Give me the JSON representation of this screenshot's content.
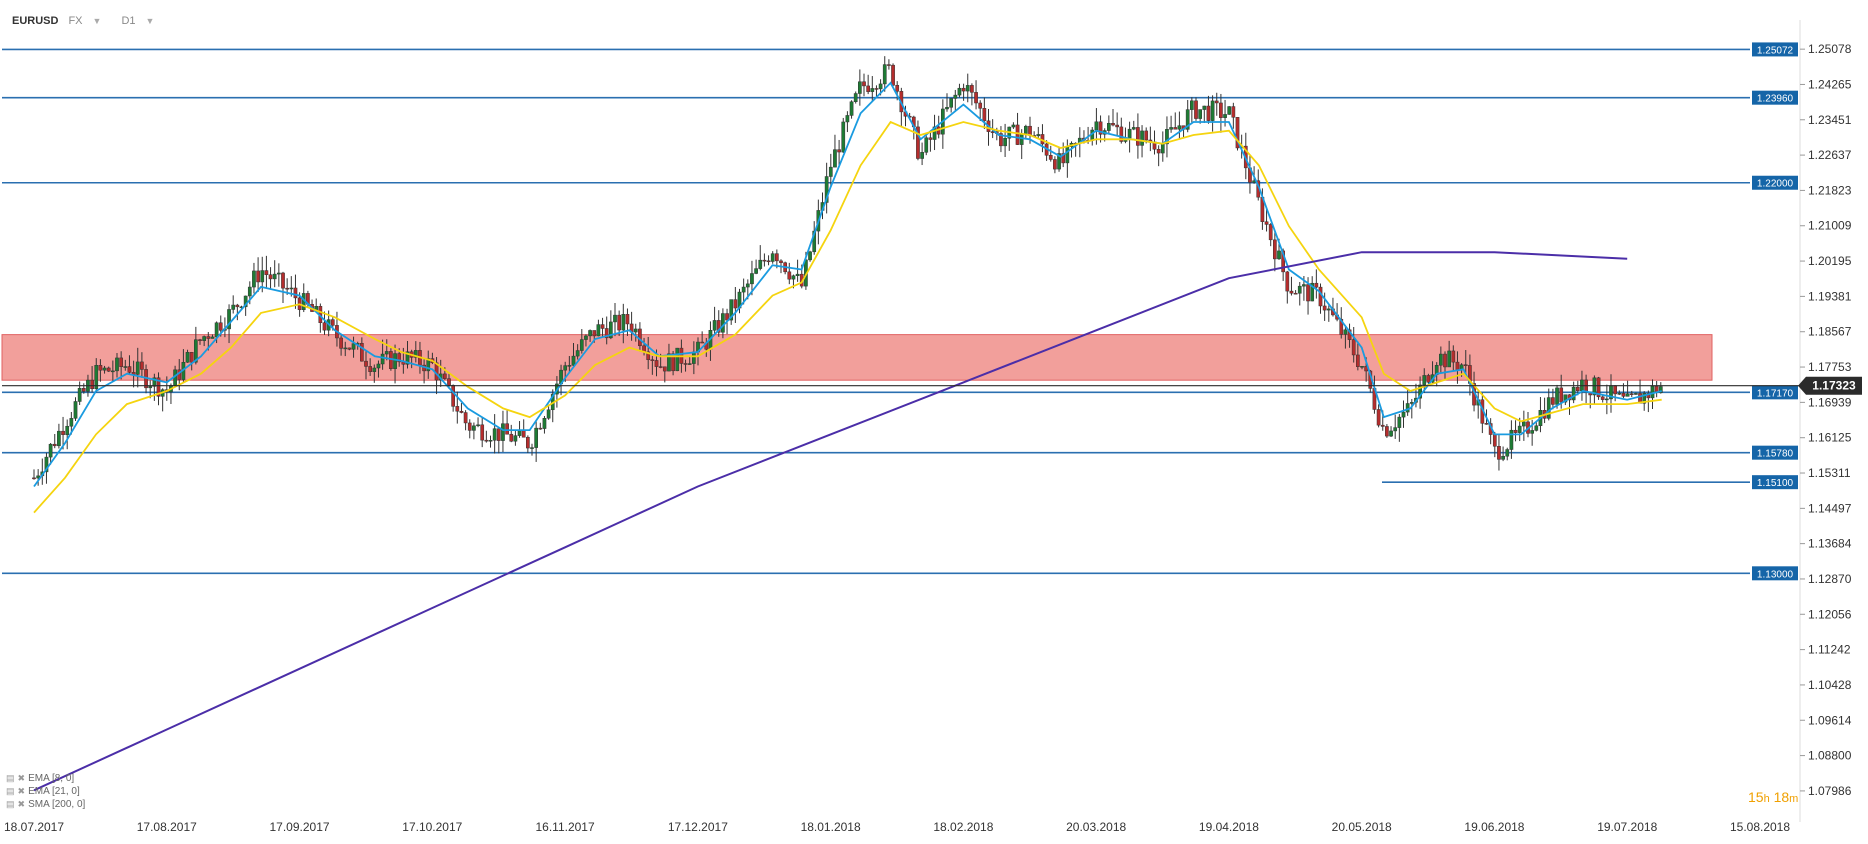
{
  "header": {
    "symbol": "EURUSD",
    "market": "FX",
    "interval": "D1"
  },
  "legend": [
    {
      "label": "EMA  [8, 0]",
      "color": "#1a9be0"
    },
    {
      "label": "EMA  [21, 0]",
      "color": "#f5d40f"
    },
    {
      "label": "SMA  [200, 0]",
      "color": "#4b2ea8"
    }
  ],
  "timer": {
    "hours": "15",
    "h": "h",
    "minutes": "18",
    "m": "m"
  },
  "chart_data": {
    "type": "candlestick",
    "ylim": [
      1.075,
      1.2575
    ],
    "y_ticks": [
      "1.25078",
      "1.24265",
      "1.23451",
      "1.22637",
      "1.21823",
      "1.21009",
      "1.20195",
      "1.19381",
      "1.18567",
      "1.17753",
      "1.16939",
      "1.16125",
      "1.15311",
      "1.14497",
      "1.13684",
      "1.12870",
      "1.12056",
      "1.11242",
      "1.10428",
      "1.09614",
      "1.08800",
      "1.07986"
    ],
    "x_ticks": [
      "18.07.2017",
      "17.08.2017",
      "17.09.2017",
      "17.10.2017",
      "16.11.2017",
      "17.12.2017",
      "18.01.2018",
      "18.02.2018",
      "20.03.2018",
      "19.04.2018",
      "20.05.2018",
      "19.06.2018",
      "19.07.2018",
      "15.08.2018"
    ],
    "last_price": "1.17323",
    "horizontal_levels": [
      "1.25072",
      "1.23960",
      "1.22000",
      "1.17170",
      "1.15780",
      "1.15100",
      "1.13000"
    ],
    "resistance_zone": [
      1.1745,
      1.185
    ],
    "close_path": [
      [
        "18.07.2017",
        1.152
      ],
      [
        "25.07.2017",
        1.165
      ],
      [
        "01.08.2017",
        1.176
      ],
      [
        "08.08.2017",
        1.178
      ],
      [
        "17.08.2017",
        1.172
      ],
      [
        "25.08.2017",
        1.184
      ],
      [
        "01.09.2017",
        1.19
      ],
      [
        "08.09.2017",
        1.2
      ],
      [
        "17.09.2017",
        1.193
      ],
      [
        "25.09.2017",
        1.185
      ],
      [
        "04.10.2017",
        1.178
      ],
      [
        "10.10.2017",
        1.18
      ],
      [
        "17.10.2017",
        1.178
      ],
      [
        "25.10.2017",
        1.164
      ],
      [
        "02.11.2017",
        1.162
      ],
      [
        "08.11.2017",
        1.16
      ],
      [
        "16.11.2017",
        1.178
      ],
      [
        "23.11.2017",
        1.186
      ],
      [
        "01.12.2017",
        1.188
      ],
      [
        "08.12.2017",
        1.178
      ],
      [
        "17.12.2017",
        1.181
      ],
      [
        "26.12.2017",
        1.192
      ],
      [
        "04.01.2018",
        1.205
      ],
      [
        "11.01.2018",
        1.196
      ],
      [
        "18.01.2018",
        1.224
      ],
      [
        "25.01.2018",
        1.242
      ],
      [
        "01.02.2018",
        1.246
      ],
      [
        "08.02.2018",
        1.226
      ],
      [
        "18.02.2018",
        1.243
      ],
      [
        "26.02.2018",
        1.23
      ],
      [
        "05.03.2018",
        1.232
      ],
      [
        "12.03.2018",
        1.224
      ],
      [
        "20.03.2018",
        1.234
      ],
      [
        "28.03.2018",
        1.231
      ],
      [
        "04.04.2018",
        1.229
      ],
      [
        "11.04.2018",
        1.237
      ],
      [
        "19.04.2018",
        1.236
      ],
      [
        "26.04.2018",
        1.215
      ],
      [
        "03.05.2018",
        1.196
      ],
      [
        "10.05.2018",
        1.194
      ],
      [
        "20.05.2018",
        1.178
      ],
      [
        "25.05.2018",
        1.163
      ],
      [
        "31.05.2018",
        1.168
      ],
      [
        "06.06.2018",
        1.18
      ],
      [
        "12.06.2018",
        1.178
      ],
      [
        "19.06.2018",
        1.158
      ],
      [
        "25.06.2018",
        1.162
      ],
      [
        "02.07.2018",
        1.17
      ],
      [
        "09.07.2018",
        1.174
      ],
      [
        "19.07.2018",
        1.169
      ],
      [
        "26.07.2018",
        1.1732
      ]
    ],
    "series": [
      {
        "name": "EMA [8, 0]",
        "color": "#1a9be0",
        "values": [
          [
            "18.07.2017",
            1.15
          ],
          [
            "25.07.2017",
            1.16
          ],
          [
            "01.08.2017",
            1.172
          ],
          [
            "08.08.2017",
            1.176
          ],
          [
            "17.08.2017",
            1.174
          ],
          [
            "25.08.2017",
            1.18
          ],
          [
            "01.09.2017",
            1.188
          ],
          [
            "08.09.2017",
            1.196
          ],
          [
            "17.09.2017",
            1.194
          ],
          [
            "25.09.2017",
            1.186
          ],
          [
            "04.10.2017",
            1.18
          ],
          [
            "10.10.2017",
            1.179
          ],
          [
            "17.10.2017",
            1.177
          ],
          [
            "25.10.2017",
            1.168
          ],
          [
            "02.11.2017",
            1.163
          ],
          [
            "08.11.2017",
            1.163
          ],
          [
            "16.11.2017",
            1.175
          ],
          [
            "23.11.2017",
            1.184
          ],
          [
            "01.12.2017",
            1.186
          ],
          [
            "08.12.2017",
            1.18
          ],
          [
            "17.12.2017",
            1.181
          ],
          [
            "26.12.2017",
            1.19
          ],
          [
            "04.01.2018",
            1.201
          ],
          [
            "11.01.2018",
            1.2
          ],
          [
            "18.01.2018",
            1.219
          ],
          [
            "25.01.2018",
            1.236
          ],
          [
            "01.02.2018",
            1.243
          ],
          [
            "08.02.2018",
            1.23
          ],
          [
            "18.02.2018",
            1.238
          ],
          [
            "26.02.2018",
            1.231
          ],
          [
            "05.03.2018",
            1.23
          ],
          [
            "12.03.2018",
            1.226
          ],
          [
            "20.03.2018",
            1.232
          ],
          [
            "28.03.2018",
            1.23
          ],
          [
            "04.04.2018",
            1.229
          ],
          [
            "11.04.2018",
            1.234
          ],
          [
            "19.04.2018",
            1.234
          ],
          [
            "26.04.2018",
            1.219
          ],
          [
            "03.05.2018",
            1.2
          ],
          [
            "10.05.2018",
            1.195
          ],
          [
            "20.05.2018",
            1.182
          ],
          [
            "25.05.2018",
            1.166
          ],
          [
            "31.05.2018",
            1.168
          ],
          [
            "06.06.2018",
            1.176
          ],
          [
            "12.06.2018",
            1.177
          ],
          [
            "19.06.2018",
            1.162
          ],
          [
            "25.06.2018",
            1.162
          ],
          [
            "02.07.2018",
            1.168
          ],
          [
            "09.07.2018",
            1.172
          ],
          [
            "19.07.2018",
            1.17
          ],
          [
            "26.07.2018",
            1.172
          ]
        ]
      },
      {
        "name": "EMA [21, 0]",
        "color": "#f5d40f",
        "values": [
          [
            "18.07.2017",
            1.144
          ],
          [
            "25.07.2017",
            1.152
          ],
          [
            "01.08.2017",
            1.162
          ],
          [
            "08.08.2017",
            1.169
          ],
          [
            "17.08.2017",
            1.172
          ],
          [
            "25.08.2017",
            1.176
          ],
          [
            "01.09.2017",
            1.182
          ],
          [
            "08.09.2017",
            1.19
          ],
          [
            "17.09.2017",
            1.192
          ],
          [
            "25.09.2017",
            1.189
          ],
          [
            "04.10.2017",
            1.184
          ],
          [
            "10.10.2017",
            1.181
          ],
          [
            "17.10.2017",
            1.179
          ],
          [
            "25.10.2017",
            1.173
          ],
          [
            "02.11.2017",
            1.168
          ],
          [
            "08.11.2017",
            1.166
          ],
          [
            "16.11.2017",
            1.171
          ],
          [
            "23.11.2017",
            1.178
          ],
          [
            "01.12.2017",
            1.182
          ],
          [
            "08.12.2017",
            1.18
          ],
          [
            "17.12.2017",
            1.18
          ],
          [
            "26.12.2017",
            1.185
          ],
          [
            "04.01.2018",
            1.194
          ],
          [
            "11.01.2018",
            1.197
          ],
          [
            "18.01.2018",
            1.209
          ],
          [
            "25.01.2018",
            1.224
          ],
          [
            "01.02.2018",
            1.234
          ],
          [
            "08.02.2018",
            1.231
          ],
          [
            "18.02.2018",
            1.234
          ],
          [
            "26.02.2018",
            1.232
          ],
          [
            "05.03.2018",
            1.231
          ],
          [
            "12.03.2018",
            1.228
          ],
          [
            "20.03.2018",
            1.23
          ],
          [
            "28.03.2018",
            1.23
          ],
          [
            "04.04.2018",
            1.229
          ],
          [
            "11.04.2018",
            1.231
          ],
          [
            "19.04.2018",
            1.232
          ],
          [
            "26.04.2018",
            1.224
          ],
          [
            "03.05.2018",
            1.21
          ],
          [
            "10.05.2018",
            1.2
          ],
          [
            "20.05.2018",
            1.189
          ],
          [
            "25.05.2018",
            1.176
          ],
          [
            "31.05.2018",
            1.172
          ],
          [
            "06.06.2018",
            1.174
          ],
          [
            "12.06.2018",
            1.176
          ],
          [
            "19.06.2018",
            1.168
          ],
          [
            "25.06.2018",
            1.165
          ],
          [
            "02.07.2018",
            1.167
          ],
          [
            "09.07.2018",
            1.169
          ],
          [
            "19.07.2018",
            1.169
          ],
          [
            "26.07.2018",
            1.17
          ]
        ]
      },
      {
        "name": "SMA [200, 0]",
        "color": "#4b2ea8",
        "values": [
          [
            "18.07.2017",
            1.08
          ],
          [
            "17.08.2017",
            1.094
          ],
          [
            "17.09.2017",
            1.108
          ],
          [
            "17.10.2017",
            1.122
          ],
          [
            "16.11.2017",
            1.136
          ],
          [
            "17.12.2017",
            1.15
          ],
          [
            "18.01.2018",
            1.162
          ],
          [
            "18.02.2018",
            1.174
          ],
          [
            "20.03.2018",
            1.186
          ],
          [
            "19.04.2018",
            1.198
          ],
          [
            "20.05.2018",
            1.204
          ],
          [
            "19.06.2018",
            1.204
          ],
          [
            "19.07.2018",
            1.2025
          ]
        ]
      }
    ]
  }
}
